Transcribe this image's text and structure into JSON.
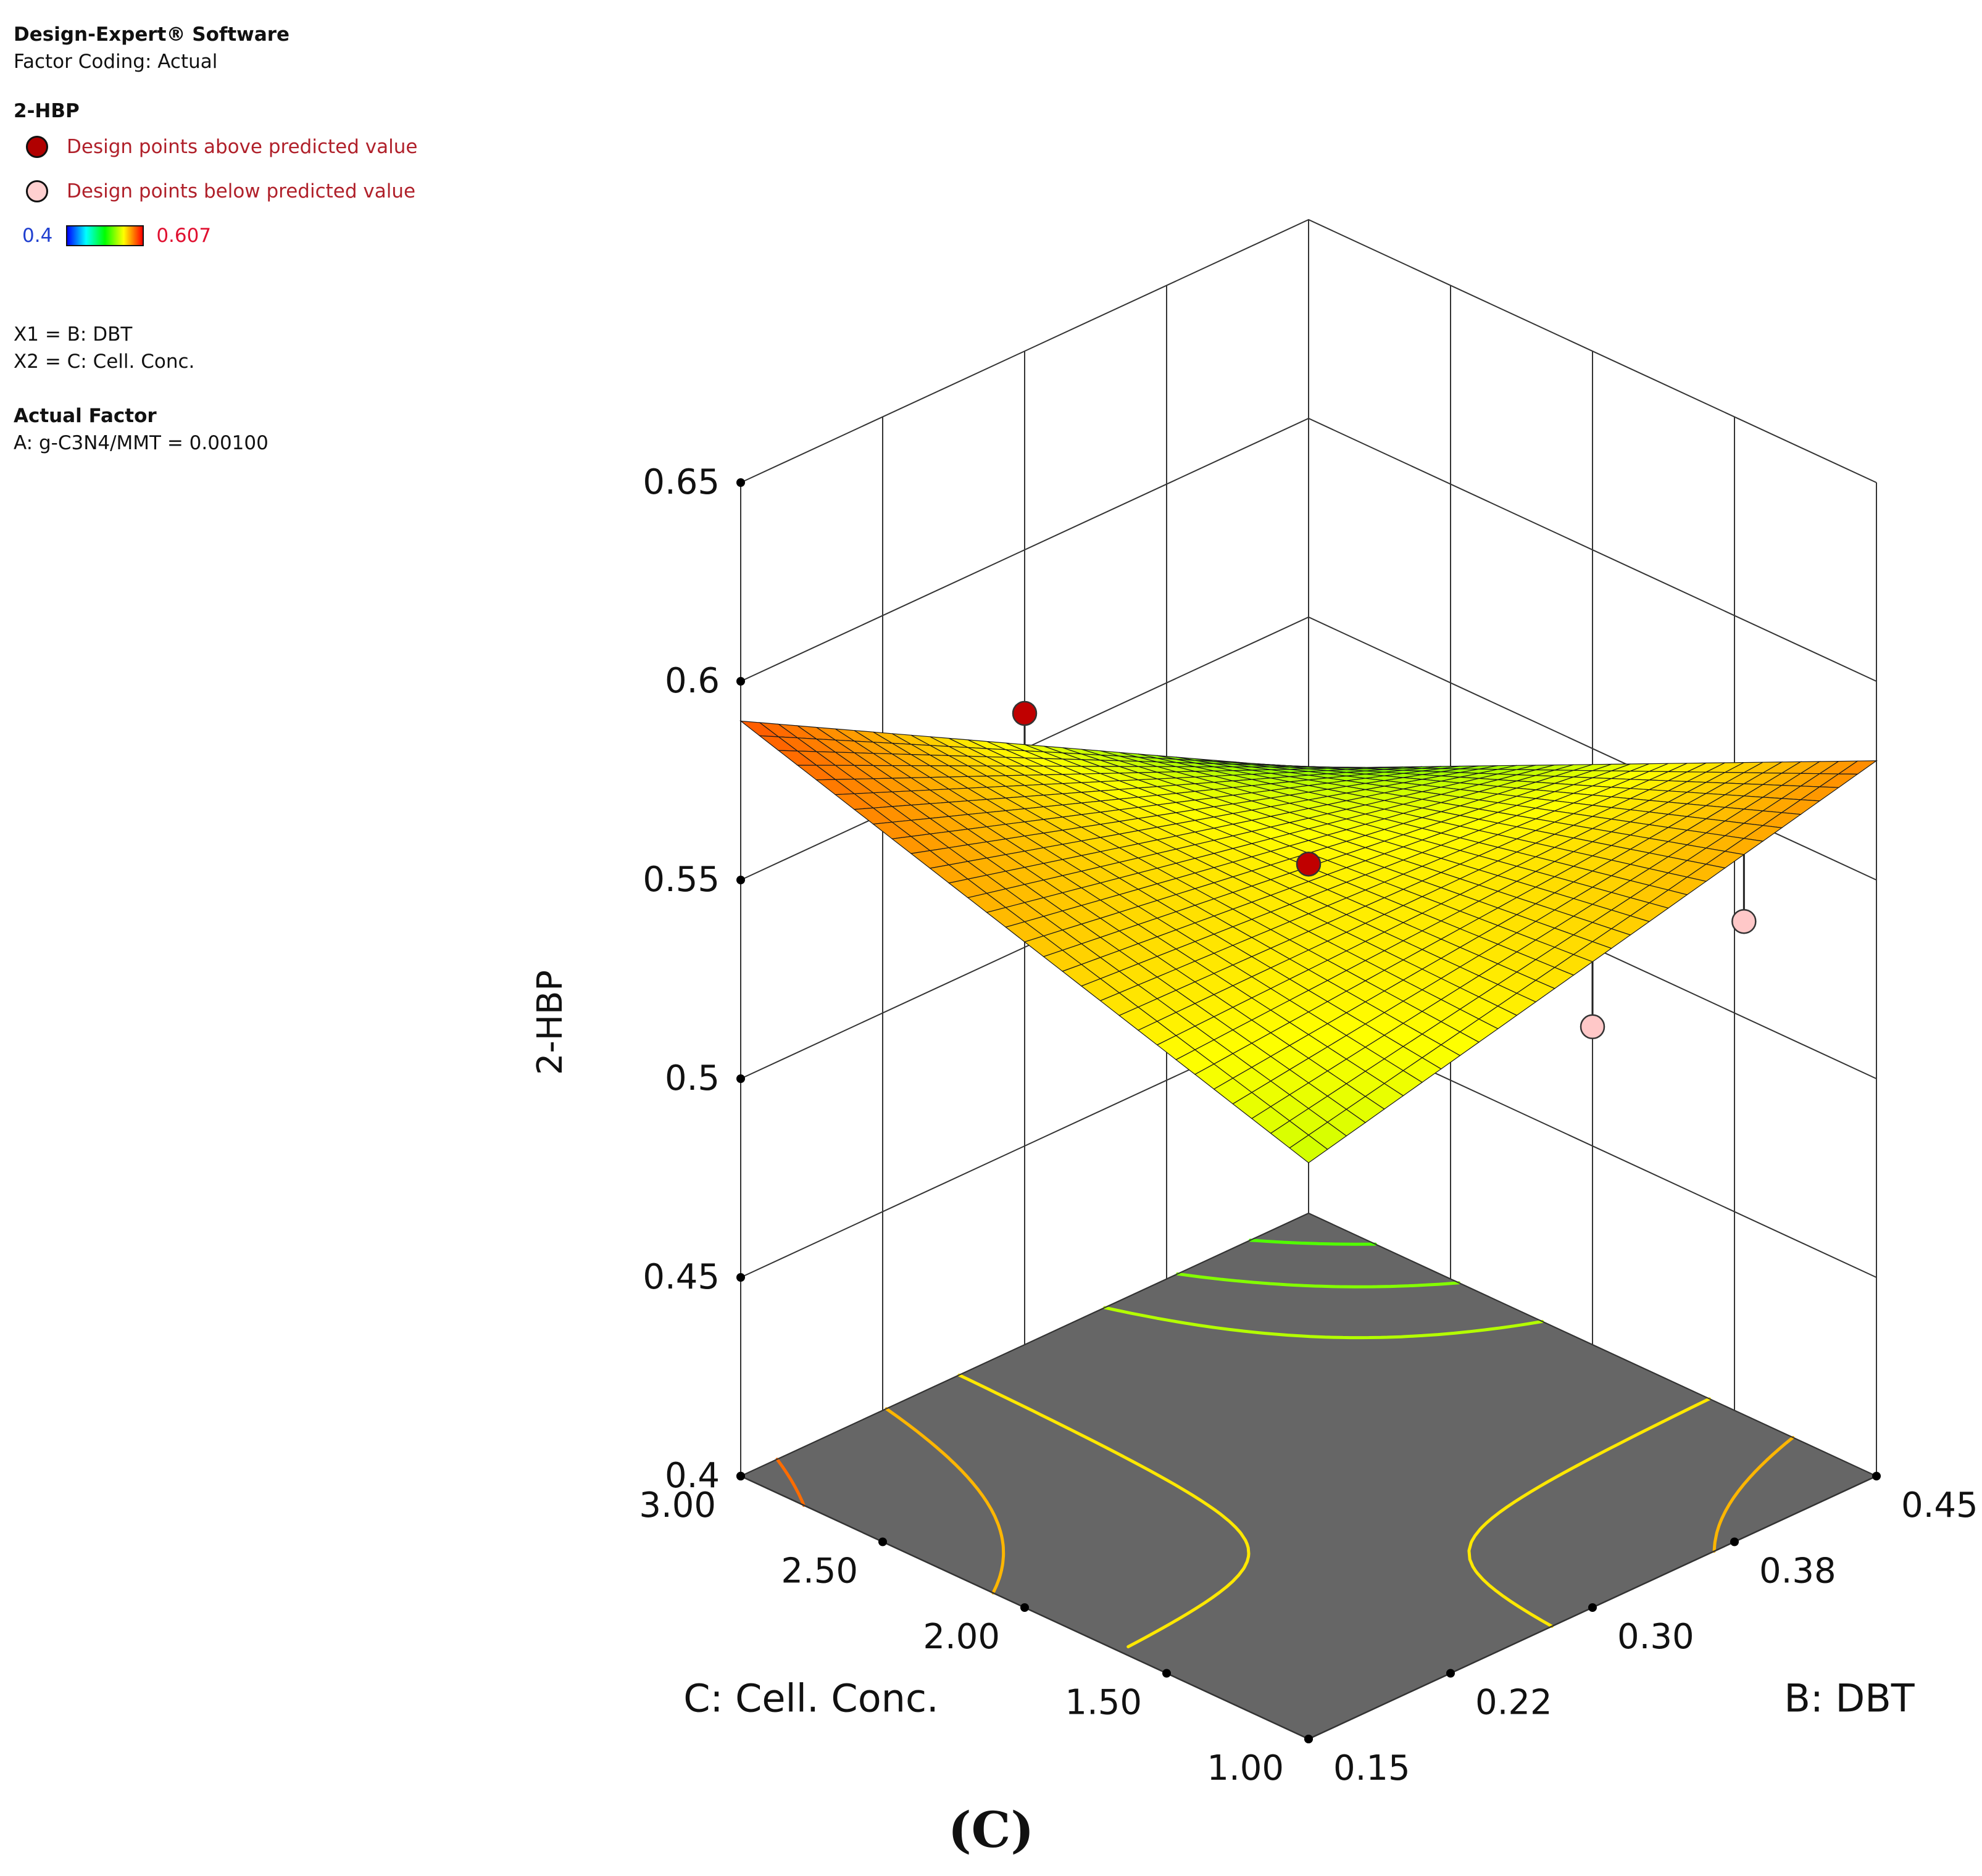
{
  "info": {
    "software": "Design-Expert® Software",
    "coding": "Factor Coding: Actual",
    "response": "2-HBP",
    "legend_above": "Design points above predicted value",
    "legend_below": "Design points below predicted value",
    "scale_min": "0.4",
    "scale_max": "0.607",
    "x1": "X1 = B: DBT",
    "x2": "X2 = C: Cell. Conc.",
    "actual_factor_title": "Actual Factor",
    "actual_factor_value": "A: g-C3N4/MMT = 0.00100"
  },
  "colors": {
    "above_point": "#c00000",
    "below_point": "#ffc8c8",
    "floor": "#666666",
    "grid": "#333333"
  },
  "caption": "(C)",
  "chart_data": {
    "type": "surface3d",
    "title": "2-HBP",
    "zlabel": "2-HBP",
    "xlabel": "B: DBT",
    "ylabel": "C: Cell. Conc.",
    "x_range": [
      0.15,
      0.45
    ],
    "y_range": [
      1.0,
      3.0
    ],
    "z_range": [
      0.4,
      0.65
    ],
    "x_ticks": [
      "0.15",
      "0.22",
      "0.30",
      "0.38",
      "0.45"
    ],
    "y_ticks": [
      "1.00",
      "1.50",
      "2.00",
      "2.50",
      "3.00"
    ],
    "z_ticks": [
      "0.4",
      "0.45",
      "0.5",
      "0.55",
      "0.6",
      "0.65"
    ],
    "color_range": [
      0.4,
      0.607
    ],
    "surface_corners": [
      {
        "x": 0.15,
        "y": 1.0,
        "z": 0.545
      },
      {
        "x": 0.45,
        "y": 1.0,
        "z": 0.58
      },
      {
        "x": 0.15,
        "y": 3.0,
        "z": 0.59
      },
      {
        "x": 0.45,
        "y": 3.0,
        "z": 0.512
      }
    ],
    "saddle_center": {
      "x": 0.3,
      "y": 2.0,
      "z": 0.548
    },
    "design_points": [
      {
        "x": 0.15,
        "y": 2.0,
        "z": 0.625,
        "type": "above"
      },
      {
        "x": 0.3,
        "y": 2.0,
        "z": 0.554,
        "type": "above"
      },
      {
        "x": 0.45,
        "y": 2.0,
        "z": 0.48,
        "type": "below"
      },
      {
        "x": 0.38,
        "y": 1.0,
        "z": 0.555,
        "type": "below"
      }
    ]
  }
}
